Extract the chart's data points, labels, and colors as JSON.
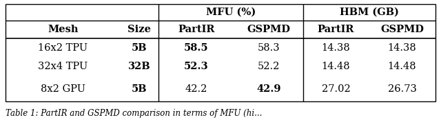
{
  "col_headers_row1_mfu": "MFU (%)",
  "col_headers_row1_hbm": "HBM (GB)",
  "col_headers_row2": [
    "Mesh",
    "Size",
    "PartIR",
    "GSPMD",
    "PartIR",
    "GSPMD"
  ],
  "rows": [
    [
      "16x2 TPU",
      "5B",
      "58.5",
      "58.3",
      "14.38",
      "14.38"
    ],
    [
      "32x4 TPU",
      "32B",
      "52.3",
      "52.2",
      "14.48",
      "14.48"
    ],
    [
      "8x2 GPU",
      "5B",
      "42.2",
      "42.9",
      "27.02",
      "26.73"
    ]
  ],
  "bold_data_cells": [
    [
      0,
      1
    ],
    [
      0,
      2
    ],
    [
      1,
      1
    ],
    [
      1,
      2
    ],
    [
      2,
      1
    ],
    [
      2,
      3
    ]
  ],
  "caption": "Table 1: PartIR and GSPMD comparison in terms of MFU (hi...",
  "bg_color": "#ffffff",
  "font_size": 10.5,
  "caption_font_size": 8.5
}
